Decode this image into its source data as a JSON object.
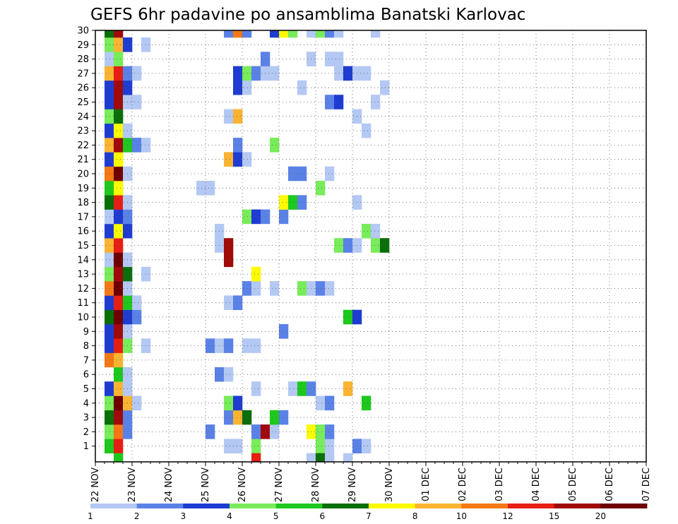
{
  "chart_data": {
    "type": "heatmap",
    "title": "GEFS 6hr padavine po ansamblima Banatski Karlovac",
    "x_tick_labels": [
      "22 NOV",
      "23 NOV",
      "24 NOV",
      "25 NOV",
      "26 NOV",
      "27 NOV",
      "28 NOV",
      "29 NOV",
      "30 NOV",
      "01 DEC",
      "02 DEC",
      "03 DEC",
      "04 DEC",
      "05 DEC",
      "06 DEC",
      "07 DEC"
    ],
    "y_tick_labels": [
      "1",
      "2",
      "3",
      "4",
      "5",
      "6",
      "7",
      "8",
      "9",
      "10",
      "11",
      "12",
      "13",
      "14",
      "15",
      "16",
      "17",
      "18",
      "19",
      "20",
      "21",
      "22",
      "23",
      "24",
      "25",
      "26",
      "27",
      "28",
      "29",
      "30"
    ],
    "steps_per_day": 4,
    "grid": true,
    "legend": {
      "position": "bottom",
      "labels": [
        "1",
        "2",
        "3",
        "4",
        "5",
        "6",
        "7",
        "8",
        "10",
        "12",
        "15",
        "20"
      ],
      "colors": [
        "#b4c8f4",
        "#5a82e6",
        "#1e3cd2",
        "#78ec5a",
        "#1ec81e",
        "#0a6e0a",
        "#fafa00",
        "#fab432",
        "#f57814",
        "#e61e14",
        "#a00a0a",
        "#6e0000"
      ]
    },
    "cells": [
      {
        "m": 1,
        "t": 1,
        "c": 4
      },
      {
        "m": 1,
        "t": 2,
        "c": 9
      },
      {
        "m": 1,
        "t": 14,
        "c": 0
      },
      {
        "m": 1,
        "t": 15,
        "c": 0
      },
      {
        "m": 1,
        "t": 17,
        "c": 3
      },
      {
        "m": 1,
        "t": 24,
        "c": 3
      },
      {
        "m": 1,
        "t": 25,
        "c": 0
      },
      {
        "m": 1,
        "t": 28,
        "c": 1
      },
      {
        "m": 1,
        "t": 29,
        "c": 0
      },
      {
        "m": 2,
        "t": 1,
        "c": 3
      },
      {
        "m": 2,
        "t": 2,
        "c": 8
      },
      {
        "m": 2,
        "t": 3,
        "c": 1
      },
      {
        "m": 2,
        "t": 12,
        "c": 1
      },
      {
        "m": 2,
        "t": 17,
        "c": 1
      },
      {
        "m": 2,
        "t": 18,
        "c": 10
      },
      {
        "m": 2,
        "t": 19,
        "c": 0
      },
      {
        "m": 2,
        "t": 23,
        "c": 6
      },
      {
        "m": 2,
        "t": 24,
        "c": 3
      },
      {
        "m": 2,
        "t": 25,
        "c": 1
      },
      {
        "m": 3,
        "t": 1,
        "c": 5
      },
      {
        "m": 3,
        "t": 2,
        "c": 10
      },
      {
        "m": 3,
        "t": 3,
        "c": 1
      },
      {
        "m": 3,
        "t": 14,
        "c": 1
      },
      {
        "m": 3,
        "t": 15,
        "c": 7
      },
      {
        "m": 3,
        "t": 16,
        "c": 5
      },
      {
        "m": 3,
        "t": 19,
        "c": 4
      },
      {
        "m": 3,
        "t": 20,
        "c": 1
      },
      {
        "m": 4,
        "t": 1,
        "c": 3
      },
      {
        "m": 4,
        "t": 2,
        "c": 11
      },
      {
        "m": 4,
        "t": 3,
        "c": 7
      },
      {
        "m": 4,
        "t": 4,
        "c": 0
      },
      {
        "m": 4,
        "t": 14,
        "c": 3
      },
      {
        "m": 4,
        "t": 15,
        "c": 2
      },
      {
        "m": 4,
        "t": 24,
        "c": 0
      },
      {
        "m": 4,
        "t": 25,
        "c": 1
      },
      {
        "m": 4,
        "t": 29,
        "c": 4
      },
      {
        "m": 5,
        "t": 1,
        "c": 2
      },
      {
        "m": 5,
        "t": 2,
        "c": 7
      },
      {
        "m": 5,
        "t": 3,
        "c": 0
      },
      {
        "m": 5,
        "t": 17,
        "c": 0
      },
      {
        "m": 5,
        "t": 21,
        "c": 0
      },
      {
        "m": 5,
        "t": 22,
        "c": 4
      },
      {
        "m": 5,
        "t": 23,
        "c": 1
      },
      {
        "m": 5,
        "t": 27,
        "c": 7
      },
      {
        "m": 6,
        "t": 2,
        "c": 4
      },
      {
        "m": 6,
        "t": 3,
        "c": 0
      },
      {
        "m": 6,
        "t": 13,
        "c": 1
      },
      {
        "m": 6,
        "t": 14,
        "c": 0
      },
      {
        "m": 7,
        "t": 1,
        "c": 8
      },
      {
        "m": 7,
        "t": 2,
        "c": 7
      },
      {
        "m": 8,
        "t": 1,
        "c": 2
      },
      {
        "m": 8,
        "t": 2,
        "c": 9
      },
      {
        "m": 8,
        "t": 3,
        "c": 3
      },
      {
        "m": 8,
        "t": 5,
        "c": 0
      },
      {
        "m": 8,
        "t": 12,
        "c": 1
      },
      {
        "m": 8,
        "t": 13,
        "c": 0
      },
      {
        "m": 8,
        "t": 14,
        "c": 1
      },
      {
        "m": 8,
        "t": 16,
        "c": 0
      },
      {
        "m": 8,
        "t": 17,
        "c": 0
      },
      {
        "m": 9,
        "t": 1,
        "c": 2
      },
      {
        "m": 9,
        "t": 2,
        "c": 10
      },
      {
        "m": 9,
        "t": 3,
        "c": 0
      },
      {
        "m": 9,
        "t": 20,
        "c": 1
      },
      {
        "m": 10,
        "t": 1,
        "c": 5
      },
      {
        "m": 10,
        "t": 2,
        "c": 11
      },
      {
        "m": 10,
        "t": 3,
        "c": 2
      },
      {
        "m": 10,
        "t": 4,
        "c": 1
      },
      {
        "m": 10,
        "t": 27,
        "c": 4
      },
      {
        "m": 10,
        "t": 28,
        "c": 2
      },
      {
        "m": 11,
        "t": 1,
        "c": 2
      },
      {
        "m": 11,
        "t": 2,
        "c": 9
      },
      {
        "m": 11,
        "t": 3,
        "c": 4
      },
      {
        "m": 11,
        "t": 4,
        "c": 0
      },
      {
        "m": 11,
        "t": 14,
        "c": 0
      },
      {
        "m": 11,
        "t": 15,
        "c": 1
      },
      {
        "m": 12,
        "t": 1,
        "c": 8
      },
      {
        "m": 12,
        "t": 2,
        "c": 11
      },
      {
        "m": 12,
        "t": 3,
        "c": 0
      },
      {
        "m": 12,
        "t": 16,
        "c": 1
      },
      {
        "m": 12,
        "t": 17,
        "c": 0
      },
      {
        "m": 12,
        "t": 19,
        "c": 0
      },
      {
        "m": 12,
        "t": 22,
        "c": 3
      },
      {
        "m": 12,
        "t": 23,
        "c": 0
      },
      {
        "m": 12,
        "t": 24,
        "c": 1
      },
      {
        "m": 12,
        "t": 25,
        "c": 0
      },
      {
        "m": 13,
        "t": 1,
        "c": 3
      },
      {
        "m": 13,
        "t": 2,
        "c": 10
      },
      {
        "m": 13,
        "t": 3,
        "c": 5
      },
      {
        "m": 13,
        "t": 5,
        "c": 0
      },
      {
        "m": 13,
        "t": 17,
        "c": 6
      },
      {
        "m": 14,
        "t": 1,
        "c": 0
      },
      {
        "m": 14,
        "t": 2,
        "c": 11
      },
      {
        "m": 14,
        "t": 3,
        "c": 0
      },
      {
        "m": 14,
        "t": 14,
        "c": 10
      },
      {
        "m": 15,
        "t": 1,
        "c": 7
      },
      {
        "m": 15,
        "t": 2,
        "c": 9
      },
      {
        "m": 15,
        "t": 13,
        "c": 0
      },
      {
        "m": 15,
        "t": 14,
        "c": 10
      },
      {
        "m": 15,
        "t": 26,
        "c": 3
      },
      {
        "m": 15,
        "t": 27,
        "c": 1
      },
      {
        "m": 15,
        "t": 28,
        "c": 0
      },
      {
        "m": 15,
        "t": 30,
        "c": 3
      },
      {
        "m": 15,
        "t": 31,
        "c": 5
      },
      {
        "m": 16,
        "t": 1,
        "c": 2
      },
      {
        "m": 16,
        "t": 2,
        "c": 6
      },
      {
        "m": 16,
        "t": 3,
        "c": 2
      },
      {
        "m": 16,
        "t": 13,
        "c": 0
      },
      {
        "m": 16,
        "t": 29,
        "c": 3
      },
      {
        "m": 16,
        "t": 30,
        "c": 0
      },
      {
        "m": 17,
        "t": 1,
        "c": 0
      },
      {
        "m": 17,
        "t": 2,
        "c": 2
      },
      {
        "m": 17,
        "t": 3,
        "c": 1
      },
      {
        "m": 17,
        "t": 16,
        "c": 3
      },
      {
        "m": 17,
        "t": 17,
        "c": 2
      },
      {
        "m": 17,
        "t": 18,
        "c": 1
      },
      {
        "m": 17,
        "t": 20,
        "c": 1
      },
      {
        "m": 18,
        "t": 1,
        "c": 5
      },
      {
        "m": 18,
        "t": 2,
        "c": 9
      },
      {
        "m": 18,
        "t": 3,
        "c": 0
      },
      {
        "m": 18,
        "t": 20,
        "c": 6
      },
      {
        "m": 18,
        "t": 21,
        "c": 4
      },
      {
        "m": 18,
        "t": 22,
        "c": 1
      },
      {
        "m": 18,
        "t": 28,
        "c": 0
      },
      {
        "m": 19,
        "t": 1,
        "c": 4
      },
      {
        "m": 19,
        "t": 2,
        "c": 6
      },
      {
        "m": 19,
        "t": 11,
        "c": 0
      },
      {
        "m": 19,
        "t": 12,
        "c": 0
      },
      {
        "m": 19,
        "t": 24,
        "c": 3
      },
      {
        "m": 20,
        "t": 1,
        "c": 8
      },
      {
        "m": 20,
        "t": 2,
        "c": 11
      },
      {
        "m": 20,
        "t": 3,
        "c": 0
      },
      {
        "m": 20,
        "t": 21,
        "c": 1
      },
      {
        "m": 20,
        "t": 22,
        "c": 1
      },
      {
        "m": 20,
        "t": 25,
        "c": 0
      },
      {
        "m": 21,
        "t": 1,
        "c": 2
      },
      {
        "m": 21,
        "t": 2,
        "c": 6
      },
      {
        "m": 21,
        "t": 14,
        "c": 7
      },
      {
        "m": 21,
        "t": 15,
        "c": 2
      },
      {
        "m": 21,
        "t": 16,
        "c": 0
      },
      {
        "m": 22,
        "t": 1,
        "c": 7
      },
      {
        "m": 22,
        "t": 2,
        "c": 10
      },
      {
        "m": 22,
        "t": 3,
        "c": 4
      },
      {
        "m": 22,
        "t": 4,
        "c": 1
      },
      {
        "m": 22,
        "t": 5,
        "c": 0
      },
      {
        "m": 22,
        "t": 15,
        "c": 1
      },
      {
        "m": 22,
        "t": 19,
        "c": 3
      },
      {
        "m": 23,
        "t": 1,
        "c": 2
      },
      {
        "m": 23,
        "t": 2,
        "c": 6
      },
      {
        "m": 23,
        "t": 3,
        "c": 0
      },
      {
        "m": 23,
        "t": 29,
        "c": 0
      },
      {
        "m": 24,
        "t": 1,
        "c": 3
      },
      {
        "m": 24,
        "t": 2,
        "c": 5
      },
      {
        "m": 24,
        "t": 14,
        "c": 0
      },
      {
        "m": 24,
        "t": 15,
        "c": 7
      },
      {
        "m": 24,
        "t": 28,
        "c": 0
      },
      {
        "m": 25,
        "t": 1,
        "c": 2
      },
      {
        "m": 25,
        "t": 2,
        "c": 10
      },
      {
        "m": 25,
        "t": 3,
        "c": 0
      },
      {
        "m": 25,
        "t": 4,
        "c": 0
      },
      {
        "m": 25,
        "t": 25,
        "c": 1
      },
      {
        "m": 25,
        "t": 26,
        "c": 2
      },
      {
        "m": 25,
        "t": 30,
        "c": 0
      },
      {
        "m": 26,
        "t": 1,
        "c": 2
      },
      {
        "m": 26,
        "t": 2,
        "c": 10
      },
      {
        "m": 26,
        "t": 3,
        "c": 2
      },
      {
        "m": 26,
        "t": 15,
        "c": 2
      },
      {
        "m": 26,
        "t": 16,
        "c": 0
      },
      {
        "m": 26,
        "t": 22,
        "c": 0
      },
      {
        "m": 26,
        "t": 31,
        "c": 0
      },
      {
        "m": 27,
        "t": 1,
        "c": 7
      },
      {
        "m": 27,
        "t": 2,
        "c": 9
      },
      {
        "m": 27,
        "t": 3,
        "c": 1
      },
      {
        "m": 27,
        "t": 4,
        "c": 0
      },
      {
        "m": 27,
        "t": 15,
        "c": 2
      },
      {
        "m": 27,
        "t": 16,
        "c": 3
      },
      {
        "m": 27,
        "t": 17,
        "c": 1
      },
      {
        "m": 27,
        "t": 18,
        "c": 0
      },
      {
        "m": 27,
        "t": 19,
        "c": 0
      },
      {
        "m": 27,
        "t": 26,
        "c": 0
      },
      {
        "m": 27,
        "t": 27,
        "c": 2
      },
      {
        "m": 27,
        "t": 28,
        "c": 0
      },
      {
        "m": 27,
        "t": 29,
        "c": 0
      },
      {
        "m": 28,
        "t": 1,
        "c": 0
      },
      {
        "m": 28,
        "t": 2,
        "c": 3
      },
      {
        "m": 28,
        "t": 18,
        "c": 1
      },
      {
        "m": 28,
        "t": 23,
        "c": 0
      },
      {
        "m": 28,
        "t": 25,
        "c": 0
      },
      {
        "m": 28,
        "t": 26,
        "c": 0
      },
      {
        "m": 29,
        "t": 1,
        "c": 3
      },
      {
        "m": 29,
        "t": 2,
        "c": 7
      },
      {
        "m": 29,
        "t": 3,
        "c": 2
      },
      {
        "m": 29,
        "t": 5,
        "c": 0
      },
      {
        "m": 30,
        "t": 1,
        "c": 5
      },
      {
        "m": 30,
        "t": 2,
        "c": 10
      },
      {
        "m": 30,
        "t": 14,
        "c": 1
      },
      {
        "m": 30,
        "t": 15,
        "c": 8
      },
      {
        "m": 30,
        "t": 16,
        "c": 1
      },
      {
        "m": 30,
        "t": 19,
        "c": 2
      },
      {
        "m": 30,
        "t": 20,
        "c": 6
      },
      {
        "m": 30,
        "t": 21,
        "c": 3
      },
      {
        "m": 30,
        "t": 23,
        "c": 0
      },
      {
        "m": 30,
        "t": 24,
        "c": 3
      },
      {
        "m": 30,
        "t": 25,
        "c": 1
      },
      {
        "m": 30,
        "t": 26,
        "c": 0
      },
      {
        "m": 30,
        "t": 30,
        "c": 0
      },
      {
        "m": 0,
        "t": 2,
        "c": 4
      },
      {
        "m": 0,
        "t": 17,
        "c": 9
      },
      {
        "m": 0,
        "t": 23,
        "c": 0
      },
      {
        "m": 0,
        "t": 24,
        "c": 5
      },
      {
        "m": 0,
        "t": 25,
        "c": 0
      },
      {
        "m": 0,
        "t": 27,
        "c": 0
      }
    ]
  }
}
